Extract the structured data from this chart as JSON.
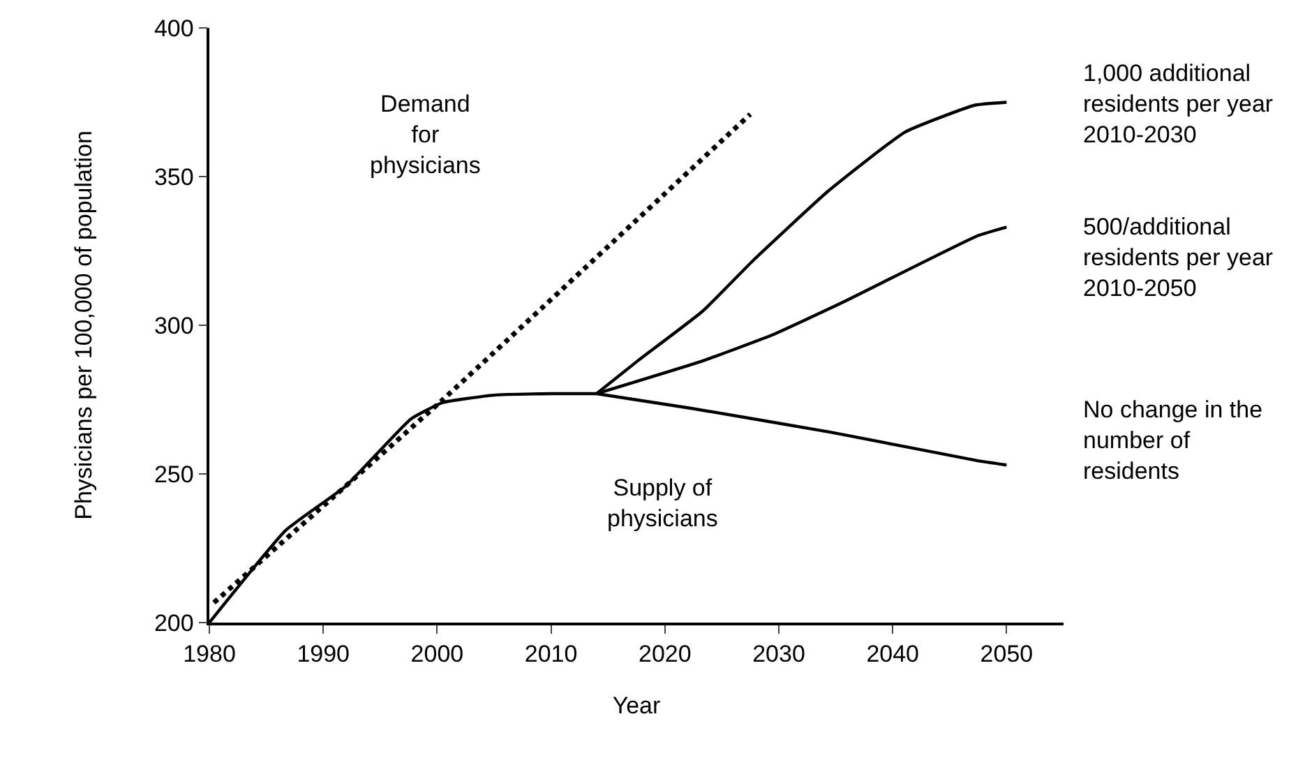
{
  "chart_data": {
    "type": "line",
    "xlabel": "Year",
    "ylabel": "Physicians per 100,000 of population",
    "xlim": [
      1980,
      2055
    ],
    "xticks": [
      1980,
      1990,
      2000,
      2010,
      2020,
      2030,
      2040,
      2050
    ],
    "ylim": [
      200,
      400
    ],
    "yticks": [
      200,
      250,
      300,
      350,
      400
    ],
    "marker": "none",
    "series": [
      {
        "color": "#000000",
        "line_style": "dotted",
        "x": [
          1980.4,
          2000.5,
          2027.5
        ],
        "values": [
          206.7,
          275,
          371
        ]
      },
      {
        "color": "#000000",
        "line_style": "solid",
        "x": [
          1980,
          1986.7,
          1992,
          1997.7,
          2000.5,
          2005,
          2010,
          2014
        ],
        "values": [
          200,
          231,
          246,
          268.5,
          274,
          276.5,
          277,
          277
        ]
      },
      {
        "color": "#000000",
        "line_style": "solid",
        "x": [
          2014,
          2017.6,
          2023.3,
          2027.7,
          2034.3,
          2041.1,
          2047.2,
          2050
        ],
        "values": [
          277,
          288,
          304.7,
          321.6,
          345,
          365,
          374,
          375
        ]
      },
      {
        "color": "#000000",
        "line_style": "solid",
        "x": [
          2014,
          2023.3,
          2029.4,
          2035.5,
          2047.4,
          2050
        ],
        "values": [
          277,
          288,
          296.7,
          307.5,
          330,
          333
        ]
      },
      {
        "color": "#000000",
        "line_style": "solid",
        "x": [
          2014,
          2022.4,
          2034.6,
          2047.4,
          2050
        ],
        "values": [
          277,
          272,
          264,
          254.5,
          253
        ]
      }
    ],
    "annotations": [
      "Demand\nfor\nphysicians",
      "Supply of\nphysicians",
      "1,000 additional\nresidents per year\n2010-2030",
      "500/additional\nresidents per year\n2010-2050",
      "No change in the\nnumber of\nresidents"
    ]
  }
}
